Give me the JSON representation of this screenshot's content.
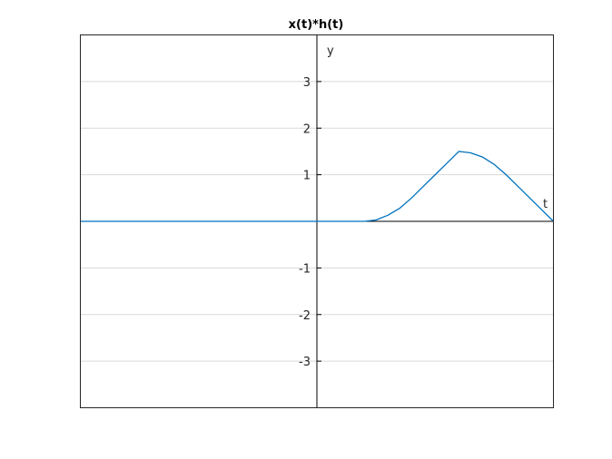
{
  "chart_data": {
    "type": "line",
    "title": "x(t)*h(t)",
    "xlabel": "t",
    "ylabel": "y",
    "xlim": [
      -5,
      5
    ],
    "ylim": [
      -4,
      4
    ],
    "yticks": [
      -3,
      -2,
      -1,
      1,
      2,
      3
    ],
    "ytick_labels": [
      "-3",
      "-2",
      "-1",
      "1",
      "2",
      "3"
    ],
    "grid": true,
    "colors": {
      "line": "#0072BD",
      "grid": "#d9d9d9",
      "axes": "#000000"
    },
    "series": [
      {
        "x": [
          -5,
          1,
          1.25,
          1.5,
          1.75,
          2,
          2.25,
          2.5,
          2.75,
          3,
          3.25,
          3.5,
          3.75,
          4,
          4.25,
          4.5,
          4.75,
          5
        ],
        "y": [
          0,
          0,
          0.03,
          0.13,
          0.28,
          0.5,
          0.75,
          1.0,
          1.25,
          1.5,
          1.47,
          1.38,
          1.22,
          1.0,
          0.75,
          0.5,
          0.25,
          0
        ]
      }
    ]
  }
}
